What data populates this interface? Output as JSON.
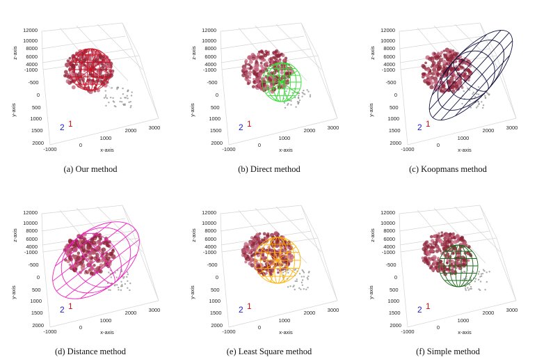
{
  "axes": {
    "z_label": "z-axis",
    "y_label": "y-axis",
    "x_label": "x-axis",
    "z_ticks": [
      "12000",
      "10000",
      "8000",
      "6000",
      "4000"
    ],
    "y_ticks": [
      "-1000",
      "-500",
      "0",
      "500",
      "1000",
      "1500",
      "2000"
    ],
    "x_ticks": [
      "-1000",
      "0",
      "1000",
      "2000",
      "3000"
    ],
    "marker_2": "2",
    "marker_1": "1"
  },
  "panels": [
    {
      "caption": "(a) Our method"
    },
    {
      "caption": "(b) Direct method"
    },
    {
      "caption": "(c) Koopmans method"
    },
    {
      "caption": "(d) Distance method"
    },
    {
      "caption": "(e) Least Square method"
    },
    {
      "caption": "(f) Simple method"
    }
  ]
}
